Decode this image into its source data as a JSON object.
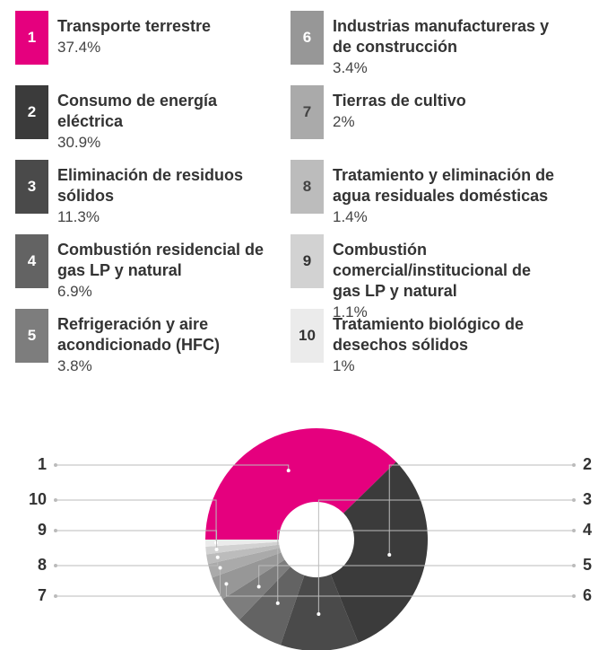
{
  "chart_data": {
    "type": "pie",
    "donut": true,
    "keys": [
      "1",
      "2",
      "3",
      "4",
      "5",
      "6",
      "7",
      "8",
      "9",
      "10"
    ],
    "categories": [
      "Transporte terrestre",
      "Consumo de energía eléctrica",
      "Eliminación de residuos sólidos",
      "Combustión residencial de gas LP y natural",
      "Refrigeración y aire acondicionado (HFC)",
      "Industrias manufactureras y de construcción",
      "Tierras de cultivo",
      "Tratamiento y eliminación de agua residuales domésticas",
      "Combustión comercial/institucional de gas LP y natural",
      "Tratamiento biológico de desechos sólidos"
    ],
    "values": [
      37.4,
      30.9,
      11.3,
      6.9,
      3.8,
      3.4,
      2,
      1.4,
      1.1,
      1
    ],
    "value_labels": [
      "37.4%",
      "30.9%",
      "11.3%",
      "6.9%",
      "3.8%",
      "3.4%",
      "2%",
      "1.4%",
      "1.1%",
      "1%"
    ],
    "colors": [
      "#e5007e",
      "#3b3b3b",
      "#4a4a4a",
      "#636363",
      "#7d7d7d",
      "#979797",
      "#aaaaaa",
      "#bcbcbc",
      "#d2d2d2",
      "#ebebeb"
    ]
  }
}
